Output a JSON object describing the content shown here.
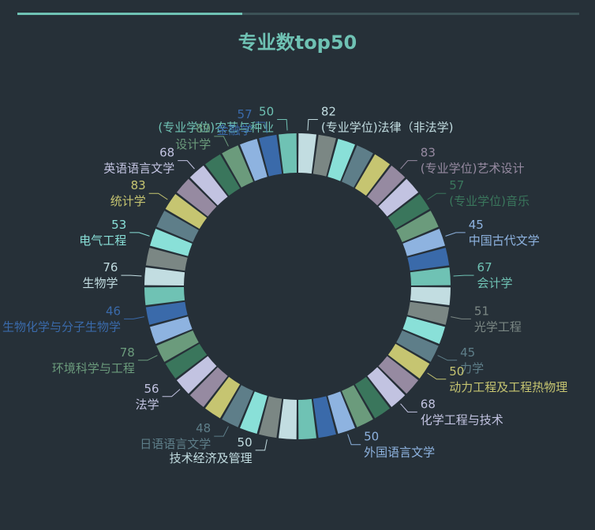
{
  "chart_data": {
    "type": "pie",
    "title": "专业数top50",
    "palette": [
      "#6fc2b4",
      "#c2dde1",
      "#7b8784",
      "#89e0d8",
      "#5e7e89",
      "#c6c571",
      "#968aa1",
      "#c2c3e1",
      "#3a765c",
      "#6b9b7c",
      "#8eb3e0",
      "#3a6aaa"
    ],
    "labeled": [
      {
        "index": 0,
        "name": "(专业学位)农艺与种业",
        "value": 50,
        "color": "#6fc2b4"
      },
      {
        "index": 1,
        "name": "(专业学位)法律（非法学)",
        "value": 82,
        "color": "#c2dde1"
      },
      {
        "index": 6,
        "name": "(专业学位)艺术设计",
        "value": 83,
        "color": "#968aa1"
      },
      {
        "index": 8,
        "name": "(专业学位)音乐",
        "value": 57,
        "color": "#3a765c"
      },
      {
        "index": 10,
        "name": "中国古代文学",
        "value": 45,
        "color": "#8eb3e0"
      },
      {
        "index": 12,
        "name": "会计学",
        "value": 67,
        "color": "#6fc2b4"
      },
      {
        "index": 14,
        "name": "光学工程",
        "value": 51,
        "color": "#7b8784"
      },
      {
        "index": 16,
        "name": "力学",
        "value": 45,
        "color": "#5e7e89"
      },
      {
        "index": 17,
        "name": "动力工程及工程热物理",
        "value": 50,
        "color": "#c6c571"
      },
      {
        "index": 19,
        "name": "化学工程与技术",
        "value": 68,
        "color": "#c2c3e1"
      },
      {
        "index": 22,
        "name": "外国语言文学",
        "value": 50,
        "color": "#8eb3e0"
      },
      {
        "index": 26,
        "name": "技术经济及管理",
        "value": 50,
        "color": "#c2dde1"
      },
      {
        "index": 28,
        "name": "日语语言文学",
        "value": 48,
        "color": "#5e7e89"
      },
      {
        "index": 31,
        "name": "法学",
        "value": 56,
        "color": "#c2c3e1"
      },
      {
        "index": 33,
        "name": "环境科学与工程",
        "value": 78,
        "color": "#6b9b7c"
      },
      {
        "index": 35,
        "name": "生物化学与分子生物学",
        "value": 46,
        "color": "#3a6aaa"
      },
      {
        "index": 37,
        "name": "生物学",
        "value": 76,
        "color": "#c2dde1"
      },
      {
        "index": 39,
        "name": "电气工程",
        "value": 53,
        "color": "#89e0d8"
      },
      {
        "index": 41,
        "name": "统计学",
        "value": 83,
        "color": "#c6c571"
      },
      {
        "index": 43,
        "name": "英语语言文学",
        "value": 68,
        "color": "#c2c3e1"
      },
      {
        "index": 45,
        "name": "设计学",
        "value": 89,
        "color": "#6b9b7c"
      },
      {
        "index": 47,
        "name": "金融学",
        "value": 57,
        "color": "#3a6aaa"
      }
    ]
  }
}
